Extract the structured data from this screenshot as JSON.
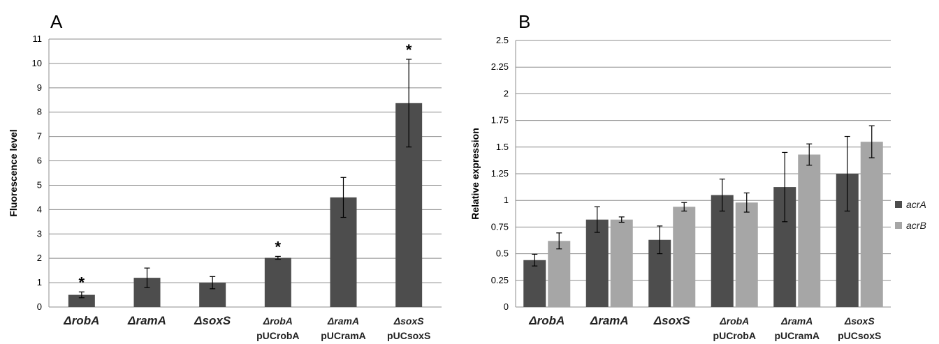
{
  "panels": {
    "a_label": "A",
    "b_label": "B"
  },
  "chart_data": [
    {
      "type": "bar",
      "panel": "A",
      "ylabel": "Fluorescence level",
      "ylim": [
        0,
        11
      ],
      "yticks": [
        "0",
        "1",
        "2",
        "3",
        "4",
        "5",
        "6",
        "7",
        "8",
        "9",
        "10",
        "11"
      ],
      "grid": true,
      "categories": [
        [
          "Δ",
          "robA",
          ""
        ],
        [
          "Δ",
          "ramA",
          ""
        ],
        [
          "Δ",
          "soxS",
          ""
        ],
        [
          "Δ",
          "robA",
          "pUCrobA"
        ],
        [
          "Δ",
          "ramA",
          "pUCramA"
        ],
        [
          "Δ",
          "soxS",
          "pUCsoxS"
        ]
      ],
      "values": [
        0.5,
        1.2,
        1.0,
        2.02,
        4.5,
        8.37
      ],
      "errors": [
        0.12,
        0.4,
        0.25,
        0.06,
        0.82,
        1.8
      ],
      "significance": [
        "*",
        "",
        "",
        "*",
        "",
        "*"
      ],
      "color": "#4d4d4d"
    },
    {
      "type": "bar",
      "panel": "B",
      "ylabel": "Relative expression",
      "ylim": [
        0,
        2.5
      ],
      "yticks": [
        "0",
        "0.25",
        "0.5",
        "0.75",
        "1",
        "1.25",
        "1.5",
        "1.75",
        "2",
        "2.25",
        "2.5"
      ],
      "grid": true,
      "legend_position": "right",
      "categories": [
        [
          "Δ",
          "robA",
          ""
        ],
        [
          "Δ",
          "ramA",
          ""
        ],
        [
          "Δ",
          "soxS",
          ""
        ],
        [
          "Δ",
          "robA",
          "pUCrobA"
        ],
        [
          "Δ",
          "ramA",
          "pUCramA"
        ],
        [
          "Δ",
          "soxS",
          "pUCsoxS"
        ]
      ],
      "series": [
        {
          "name": "acrA",
          "color": "#4d4d4d",
          "values": [
            0.44,
            0.82,
            0.63,
            1.05,
            1.125,
            1.25
          ],
          "errors": [
            0.055,
            0.12,
            0.13,
            0.15,
            0.325,
            0.35
          ]
        },
        {
          "name": "acrB",
          "color": "#a6a6a6",
          "values": [
            0.62,
            0.82,
            0.94,
            0.98,
            1.43,
            1.55
          ],
          "errors": [
            0.075,
            0.025,
            0.04,
            0.09,
            0.1,
            0.15
          ]
        }
      ]
    }
  ]
}
